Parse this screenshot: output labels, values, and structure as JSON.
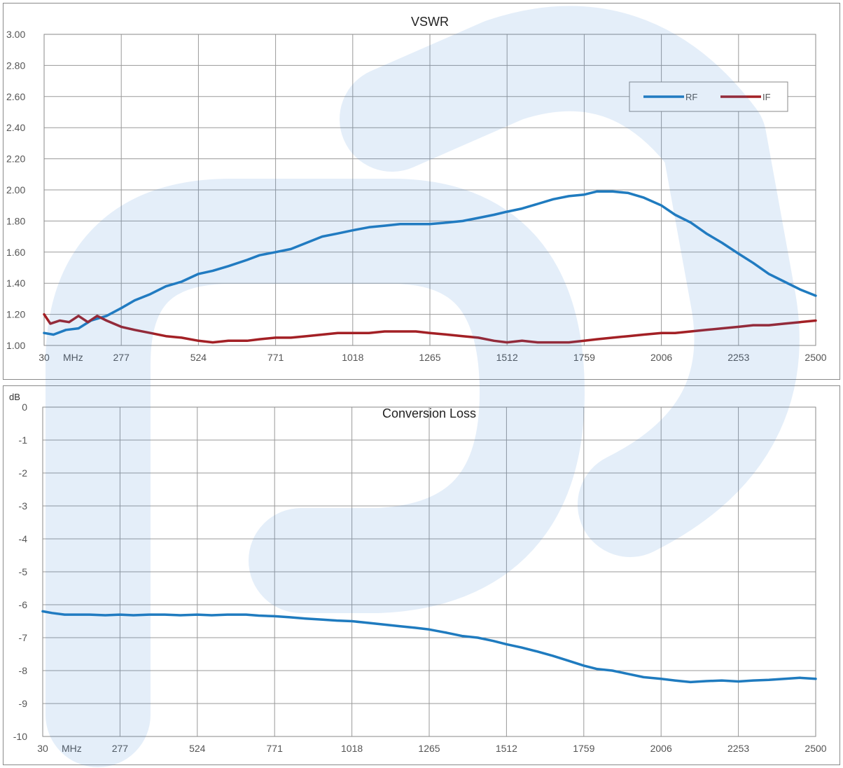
{
  "chart_data": [
    {
      "type": "line",
      "title": "VSWR",
      "xunit": "MHz",
      "ylabel": "",
      "xlim": [
        30,
        2500
      ],
      "ylim": [
        1.0,
        3.0
      ],
      "x_ticks": [
        30,
        277,
        524,
        771,
        1018,
        1265,
        1512,
        1759,
        2006,
        2253,
        2500
      ],
      "y_ticks": [
        "1.00",
        "1.20",
        "1.40",
        "1.60",
        "1.80",
        "2.00",
        "2.20",
        "2.40",
        "2.60",
        "2.80",
        "3.00"
      ],
      "grid": true,
      "legend_position": "top-right",
      "series": [
        {
          "name": "RF",
          "color": "#1f7bbf",
          "points": [
            [
              30,
              1.08
            ],
            [
              60,
              1.07
            ],
            [
              100,
              1.1
            ],
            [
              140,
              1.11
            ],
            [
              180,
              1.16
            ],
            [
              230,
              1.19
            ],
            [
              277,
              1.24
            ],
            [
              320,
              1.29
            ],
            [
              370,
              1.33
            ],
            [
              420,
              1.38
            ],
            [
              470,
              1.41
            ],
            [
              524,
              1.46
            ],
            [
              570,
              1.48
            ],
            [
              620,
              1.51
            ],
            [
              680,
              1.55
            ],
            [
              720,
              1.58
            ],
            [
              771,
              1.6
            ],
            [
              820,
              1.62
            ],
            [
              870,
              1.66
            ],
            [
              920,
              1.7
            ],
            [
              970,
              1.72
            ],
            [
              1018,
              1.74
            ],
            [
              1070,
              1.76
            ],
            [
              1120,
              1.77
            ],
            [
              1170,
              1.78
            ],
            [
              1220,
              1.78
            ],
            [
              1265,
              1.78
            ],
            [
              1320,
              1.79
            ],
            [
              1370,
              1.8
            ],
            [
              1420,
              1.82
            ],
            [
              1470,
              1.84
            ],
            [
              1512,
              1.86
            ],
            [
              1560,
              1.88
            ],
            [
              1610,
              1.91
            ],
            [
              1660,
              1.94
            ],
            [
              1710,
              1.96
            ],
            [
              1759,
              1.97
            ],
            [
              1800,
              1.99
            ],
            [
              1850,
              1.99
            ],
            [
              1900,
              1.98
            ],
            [
              1950,
              1.95
            ],
            [
              2006,
              1.9
            ],
            [
              2050,
              1.84
            ],
            [
              2100,
              1.79
            ],
            [
              2150,
              1.72
            ],
            [
              2200,
              1.66
            ],
            [
              2253,
              1.59
            ],
            [
              2300,
              1.53
            ],
            [
              2350,
              1.46
            ],
            [
              2400,
              1.41
            ],
            [
              2450,
              1.36
            ],
            [
              2500,
              1.32
            ]
          ]
        },
        {
          "name": "IF",
          "color": "#a32025",
          "points": [
            [
              30,
              1.2
            ],
            [
              50,
              1.14
            ],
            [
              80,
              1.16
            ],
            [
              110,
              1.15
            ],
            [
              140,
              1.19
            ],
            [
              170,
              1.15
            ],
            [
              200,
              1.19
            ],
            [
              230,
              1.16
            ],
            [
              277,
              1.12
            ],
            [
              320,
              1.1
            ],
            [
              370,
              1.08
            ],
            [
              420,
              1.06
            ],
            [
              470,
              1.05
            ],
            [
              524,
              1.03
            ],
            [
              570,
              1.02
            ],
            [
              620,
              1.03
            ],
            [
              680,
              1.03
            ],
            [
              720,
              1.04
            ],
            [
              771,
              1.05
            ],
            [
              820,
              1.05
            ],
            [
              870,
              1.06
            ],
            [
              920,
              1.07
            ],
            [
              970,
              1.08
            ],
            [
              1018,
              1.08
            ],
            [
              1070,
              1.08
            ],
            [
              1120,
              1.09
            ],
            [
              1170,
              1.09
            ],
            [
              1220,
              1.09
            ],
            [
              1265,
              1.08
            ],
            [
              1320,
              1.07
            ],
            [
              1370,
              1.06
            ],
            [
              1420,
              1.05
            ],
            [
              1470,
              1.03
            ],
            [
              1512,
              1.02
            ],
            [
              1560,
              1.03
            ],
            [
              1610,
              1.02
            ],
            [
              1660,
              1.02
            ],
            [
              1710,
              1.02
            ],
            [
              1759,
              1.03
            ],
            [
              1800,
              1.04
            ],
            [
              1850,
              1.05
            ],
            [
              1900,
              1.06
            ],
            [
              1950,
              1.07
            ],
            [
              2006,
              1.08
            ],
            [
              2050,
              1.08
            ],
            [
              2100,
              1.09
            ],
            [
              2150,
              1.1
            ],
            [
              2200,
              1.11
            ],
            [
              2253,
              1.12
            ],
            [
              2300,
              1.13
            ],
            [
              2350,
              1.13
            ],
            [
              2400,
              1.14
            ],
            [
              2450,
              1.15
            ],
            [
              2500,
              1.16
            ]
          ]
        }
      ]
    },
    {
      "type": "line",
      "title": "Conversion Loss",
      "xunit": "MHz",
      "ylabel": "dB",
      "xlim": [
        30,
        2500
      ],
      "ylim": [
        -10,
        0
      ],
      "x_ticks": [
        30,
        277,
        524,
        771,
        1018,
        1265,
        1512,
        1759,
        2006,
        2253,
        2500
      ],
      "y_ticks": [
        "-10",
        "-9",
        "-8",
        "-7",
        "-6",
        "-5",
        "-4",
        "-3",
        "-2",
        "-1",
        "0"
      ],
      "grid": true,
      "series": [
        {
          "color": "#1f7bbf",
          "points": [
            [
              30,
              -6.2
            ],
            [
              60,
              -6.25
            ],
            [
              100,
              -6.3
            ],
            [
              140,
              -6.3
            ],
            [
              180,
              -6.3
            ],
            [
              230,
              -6.32
            ],
            [
              277,
              -6.3
            ],
            [
              320,
              -6.32
            ],
            [
              370,
              -6.3
            ],
            [
              420,
              -6.3
            ],
            [
              470,
              -6.32
            ],
            [
              524,
              -6.3
            ],
            [
              570,
              -6.32
            ],
            [
              620,
              -6.3
            ],
            [
              680,
              -6.3
            ],
            [
              720,
              -6.33
            ],
            [
              771,
              -6.35
            ],
            [
              820,
              -6.38
            ],
            [
              870,
              -6.42
            ],
            [
              920,
              -6.45
            ],
            [
              970,
              -6.48
            ],
            [
              1018,
              -6.5
            ],
            [
              1070,
              -6.55
            ],
            [
              1120,
              -6.6
            ],
            [
              1170,
              -6.65
            ],
            [
              1220,
              -6.7
            ],
            [
              1265,
              -6.75
            ],
            [
              1320,
              -6.85
            ],
            [
              1370,
              -6.95
            ],
            [
              1420,
              -7.0
            ],
            [
              1470,
              -7.1
            ],
            [
              1512,
              -7.2
            ],
            [
              1560,
              -7.3
            ],
            [
              1610,
              -7.42
            ],
            [
              1660,
              -7.55
            ],
            [
              1710,
              -7.7
            ],
            [
              1759,
              -7.85
            ],
            [
              1800,
              -7.95
            ],
            [
              1850,
              -8.0
            ],
            [
              1900,
              -8.1
            ],
            [
              1950,
              -8.2
            ],
            [
              2006,
              -8.25
            ],
            [
              2050,
              -8.3
            ],
            [
              2100,
              -8.35
            ],
            [
              2150,
              -8.32
            ],
            [
              2200,
              -8.3
            ],
            [
              2253,
              -8.33
            ],
            [
              2300,
              -8.3
            ],
            [
              2350,
              -8.28
            ],
            [
              2400,
              -8.25
            ],
            [
              2450,
              -8.22
            ],
            [
              2500,
              -8.25
            ]
          ]
        }
      ]
    }
  ]
}
